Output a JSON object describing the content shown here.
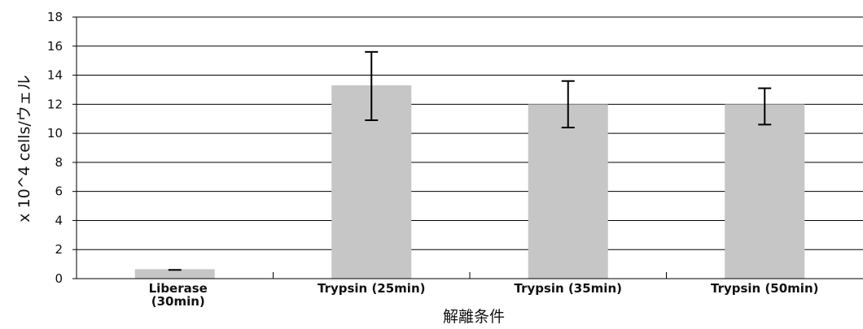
{
  "chart_data": {
    "type": "bar",
    "categories": [
      [
        "Liberase",
        "(30min)"
      ],
      [
        "Trypsin (25min)"
      ],
      [
        "Trypsin (35min)"
      ],
      [
        "Trypsin (50min)"
      ]
    ],
    "values": [
      0.65,
      13.3,
      12.0,
      12.0
    ],
    "error_low": [
      0.6,
      10.9,
      10.4,
      10.6
    ],
    "error_high": [
      0.6,
      15.6,
      13.6,
      13.1
    ],
    "xlabel": "解離条件",
    "ylabel": "x 10^4 cells/ウェル",
    "ylim": [
      0,
      18
    ],
    "yticks": [
      0,
      2,
      4,
      6,
      8,
      10,
      12,
      14,
      16,
      18
    ],
    "grid": true,
    "legend": "none",
    "bar_color": "#c6c6c6",
    "error_bar_color": "#000000"
  }
}
